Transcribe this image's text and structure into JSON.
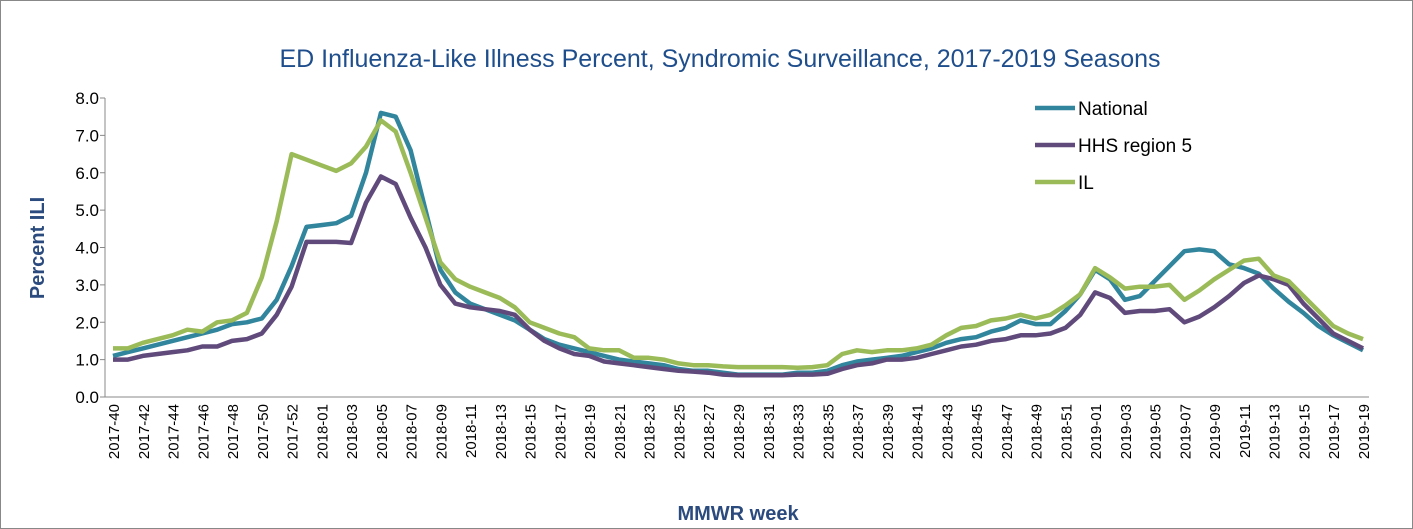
{
  "chart_data": {
    "type": "line",
    "title": "ED Influenza-Like Illness Percent, Syndromic Surveillance, 2017-2019 Seasons",
    "x_label": "MMWR week",
    "y_label": "Percent ILI",
    "categories": [
      "2017-40",
      null,
      "2017-42",
      null,
      "2017-44",
      null,
      "2017-46",
      null,
      "2017-48",
      null,
      "2017-50",
      null,
      "2017-52",
      null,
      "2018-01",
      null,
      "2018-03",
      null,
      "2018-05",
      null,
      "2018-07",
      null,
      "2018-09",
      null,
      "2018-11",
      null,
      "2018-13",
      null,
      "2018-15",
      null,
      "2018-17",
      null,
      "2018-19",
      null,
      "2018-21",
      null,
      "2018-23",
      null,
      "2018-25",
      null,
      "2018-27",
      null,
      "2018-29",
      null,
      "2018-31",
      null,
      "2018-33",
      null,
      "2018-35",
      null,
      "2018-37",
      null,
      "2018-39",
      null,
      "2018-41",
      null,
      "2018-43",
      null,
      "2018-45",
      null,
      "2018-47",
      null,
      "2018-49",
      null,
      "2018-51",
      null,
      "2019-01",
      null,
      "2019-03",
      null,
      "2019-05",
      null,
      "2019-07",
      null,
      "2019-09",
      null,
      "2019-11",
      null,
      "2019-13",
      null,
      "2019-15",
      null,
      "2019-17",
      null,
      "2019-19"
    ],
    "series": [
      {
        "name": "National",
        "color": "#31859c",
        "values": [
          1.1,
          1.2,
          1.3,
          1.4,
          1.5,
          1.6,
          1.7,
          1.8,
          1.95,
          2.0,
          2.1,
          2.6,
          3.5,
          4.55,
          4.6,
          4.65,
          4.85,
          6.0,
          7.6,
          7.5,
          6.6,
          5.0,
          3.4,
          2.8,
          2.5,
          2.35,
          2.2,
          2.05,
          1.8,
          1.55,
          1.4,
          1.3,
          1.2,
          1.1,
          1.0,
          0.95,
          0.9,
          0.85,
          0.75,
          0.7,
          0.7,
          0.65,
          0.6,
          0.6,
          0.6,
          0.6,
          0.65,
          0.65,
          0.7,
          0.85,
          0.95,
          1.0,
          1.05,
          1.1,
          1.2,
          1.3,
          1.45,
          1.55,
          1.6,
          1.75,
          1.85,
          2.05,
          1.95,
          1.95,
          2.3,
          2.75,
          3.4,
          3.15,
          2.6,
          2.7,
          3.1,
          3.5,
          3.9,
          3.95,
          3.9,
          3.55,
          3.45,
          3.3,
          2.9,
          2.55,
          2.25,
          1.9,
          1.65,
          1.45,
          1.25
        ]
      },
      {
        "name": "HHS region 5",
        "color": "#604a7b",
        "values": [
          1.0,
          1.0,
          1.1,
          1.15,
          1.2,
          1.25,
          1.35,
          1.35,
          1.5,
          1.55,
          1.7,
          2.2,
          2.95,
          4.15,
          4.15,
          4.15,
          4.12,
          5.2,
          5.9,
          5.7,
          4.8,
          4.0,
          3.0,
          2.5,
          2.4,
          2.35,
          2.3,
          2.2,
          1.8,
          1.5,
          1.3,
          1.15,
          1.1,
          0.95,
          0.9,
          0.85,
          0.8,
          0.75,
          0.7,
          0.68,
          0.65,
          0.6,
          0.58,
          0.58,
          0.58,
          0.58,
          0.6,
          0.6,
          0.62,
          0.75,
          0.85,
          0.9,
          1.0,
          1.0,
          1.05,
          1.15,
          1.25,
          1.35,
          1.4,
          1.5,
          1.55,
          1.65,
          1.65,
          1.7,
          1.85,
          2.2,
          2.8,
          2.65,
          2.25,
          2.3,
          2.3,
          2.35,
          2.0,
          2.15,
          2.4,
          2.7,
          3.05,
          3.25,
          3.15,
          3.0,
          2.5,
          2.1,
          1.7,
          1.5,
          1.3
        ]
      },
      {
        "name": "IL",
        "color": "#9bbb59",
        "values": [
          1.3,
          1.3,
          1.45,
          1.55,
          1.65,
          1.8,
          1.75,
          2.0,
          2.05,
          2.25,
          3.2,
          4.7,
          6.5,
          6.35,
          6.2,
          6.05,
          6.25,
          6.7,
          7.4,
          7.1,
          6.0,
          4.8,
          3.6,
          3.15,
          2.95,
          2.8,
          2.65,
          2.4,
          2.0,
          1.85,
          1.7,
          1.6,
          1.3,
          1.25,
          1.25,
          1.05,
          1.05,
          1.0,
          0.9,
          0.85,
          0.85,
          0.82,
          0.8,
          0.8,
          0.8,
          0.8,
          0.78,
          0.8,
          0.85,
          1.15,
          1.25,
          1.2,
          1.25,
          1.25,
          1.3,
          1.4,
          1.65,
          1.85,
          1.9,
          2.05,
          2.1,
          2.2,
          2.1,
          2.2,
          2.45,
          2.75,
          3.45,
          3.2,
          2.9,
          2.95,
          2.95,
          3.0,
          2.6,
          2.85,
          3.15,
          3.4,
          3.65,
          3.7,
          3.25,
          3.1,
          2.7,
          2.3,
          1.9,
          1.7,
          1.55
        ]
      }
    ],
    "ylim": [
      0,
      8
    ],
    "yticks": [
      {
        "value": 0,
        "label": "0.0"
      },
      {
        "value": 1,
        "label": "1.0"
      },
      {
        "value": 2,
        "label": "2.0"
      },
      {
        "value": 3,
        "label": "3.0"
      },
      {
        "value": 4,
        "label": "4.0"
      },
      {
        "value": 5,
        "label": "5.0"
      },
      {
        "value": 6,
        "label": "6.0"
      },
      {
        "value": 7,
        "label": "7.0"
      },
      {
        "value": 8,
        "label": "8.0"
      }
    ],
    "grid": false,
    "legend": "upper right"
  }
}
